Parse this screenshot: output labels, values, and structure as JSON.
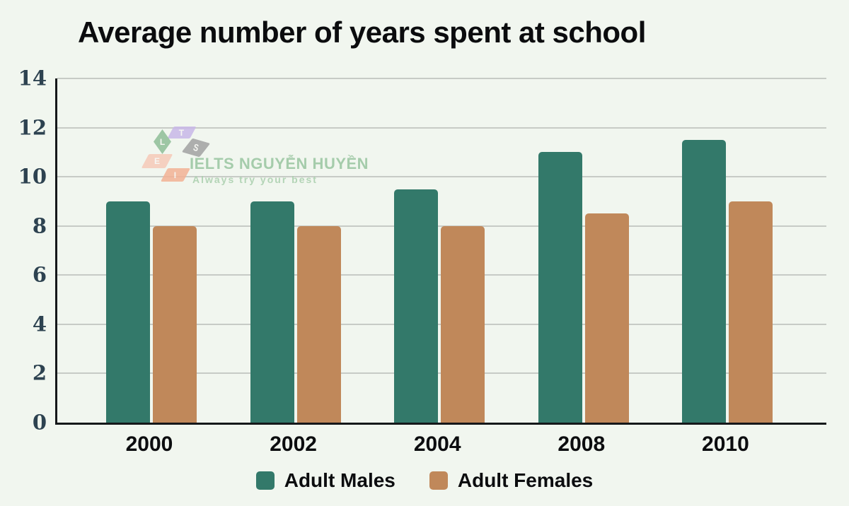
{
  "title": "Average number of years spent at school",
  "watermark": {
    "brand": "IELTS NGUYỄN HUYỀN",
    "tagline": "Always try your best",
    "logo_letters": [
      {
        "char": "T",
        "shape": "T",
        "color": "#c9b8e8"
      },
      {
        "char": "L",
        "shape": "L",
        "color": "#8fbe97"
      },
      {
        "char": "S",
        "shape": "S",
        "color": "#a2a2a2"
      },
      {
        "char": "E",
        "shape": "E",
        "color": "#f6cab8"
      },
      {
        "char": "I",
        "shape": "I",
        "color": "#f3b295"
      }
    ]
  },
  "chart_data": {
    "type": "bar",
    "title": "Average number of years spent at school",
    "categories": [
      "2000",
      "2002",
      "2004",
      "2008",
      "2010"
    ],
    "series": [
      {
        "name": "Adult Males",
        "color": "#33796a",
        "values": [
          9,
          9,
          9.5,
          11,
          11.5
        ]
      },
      {
        "name": "Adult Females",
        "color": "#c0885a",
        "values": [
          8,
          8,
          8,
          8.5,
          9
        ]
      }
    ],
    "xlabel": "",
    "ylabel": "",
    "ylim": [
      0,
      14
    ],
    "yticks": [
      0,
      2,
      4,
      6,
      8,
      10,
      12,
      14
    ],
    "grid": true,
    "legend_position": "bottom"
  },
  "colors": {
    "background": "#f1f6ef",
    "axis": "#15181a",
    "gridline": "#c7cbc6",
    "y_tick_text": "#2d4250",
    "text": "#0c0d0f",
    "male_bar": "#33796a",
    "female_bar": "#c0885a"
  }
}
